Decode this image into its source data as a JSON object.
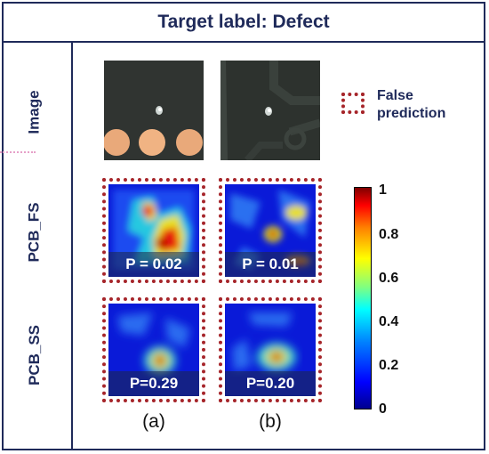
{
  "title": "Target label: Defect",
  "rows": {
    "image": "Image",
    "fs": "PCB_FS",
    "ss": "PCB_SS"
  },
  "legend": {
    "line1": "False",
    "line2": "prediction"
  },
  "predictions": {
    "fs_a": "P = 0.02",
    "fs_b": "P = 0.01",
    "ss_a": "P=0.29",
    "ss_b": "P=0.20"
  },
  "colorbar": {
    "ticks": [
      "1",
      "0.8",
      "0.6",
      "0.4",
      "0.2",
      "0"
    ],
    "range": [
      0,
      1
    ]
  },
  "columns": [
    "(a)",
    "(b)"
  ],
  "colors": {
    "frame": "#1f2a5a",
    "false_prediction_border": "#a6252a"
  }
}
